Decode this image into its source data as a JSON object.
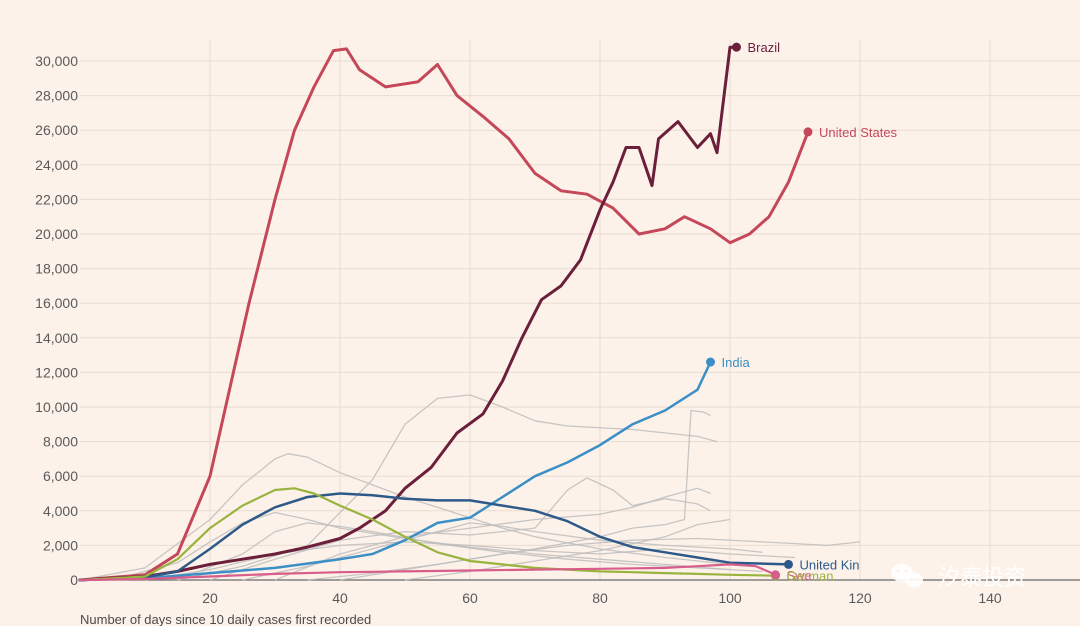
{
  "chart_data": {
    "type": "line",
    "title": "",
    "xlabel": "Number of days since 10 daily cases first recorded",
    "ylabel": "",
    "xlim": [
      0,
      160
    ],
    "ylim": [
      0,
      30000
    ],
    "x_ticks": [
      20,
      40,
      60,
      80,
      100,
      120,
      140
    ],
    "y_ticks": [
      0,
      2000,
      4000,
      6000,
      8000,
      10000,
      12000,
      14000,
      16000,
      18000,
      20000,
      22000,
      24000,
      26000,
      28000,
      30000
    ],
    "y_tick_labels": [
      "0",
      "2,000",
      "4,000",
      "6,000",
      "8,000",
      "10,000",
      "12,000",
      "14,000",
      "16,000",
      "18,000",
      "20,000",
      "22,000",
      "24,000",
      "26,000",
      "28,000",
      "30,000"
    ],
    "grid": true,
    "series": [
      {
        "name": "United States",
        "color": "#c4485a",
        "highlight": true,
        "points": [
          [
            0,
            0
          ],
          [
            10,
            300
          ],
          [
            15,
            1500
          ],
          [
            20,
            6000
          ],
          [
            23,
            11000
          ],
          [
            26,
            16000
          ],
          [
            30,
            22000
          ],
          [
            33,
            26000
          ],
          [
            36,
            28500
          ],
          [
            39,
            30600
          ],
          [
            41,
            30700
          ],
          [
            43,
            29500
          ],
          [
            47,
            28500
          ],
          [
            52,
            28800
          ],
          [
            55,
            29800
          ],
          [
            58,
            28000
          ],
          [
            62,
            26800
          ],
          [
            66,
            25500
          ],
          [
            70,
            23500
          ],
          [
            74,
            22500
          ],
          [
            78,
            22300
          ],
          [
            82,
            21500
          ],
          [
            86,
            20000
          ],
          [
            90,
            20300
          ],
          [
            93,
            21000
          ],
          [
            97,
            20300
          ],
          [
            100,
            19500
          ],
          [
            103,
            20000
          ],
          [
            106,
            21000
          ],
          [
            109,
            23000
          ],
          [
            112,
            25900
          ]
        ]
      },
      {
        "name": "Brazil",
        "color": "#6b1f3a",
        "highlight": true,
        "points": [
          [
            0,
            0
          ],
          [
            10,
            200
          ],
          [
            15,
            500
          ],
          [
            20,
            900
          ],
          [
            25,
            1200
          ],
          [
            30,
            1500
          ],
          [
            35,
            1900
          ],
          [
            40,
            2400
          ],
          [
            43,
            3000
          ],
          [
            47,
            4000
          ],
          [
            50,
            5300
          ],
          [
            54,
            6500
          ],
          [
            58,
            8500
          ],
          [
            62,
            9600
          ],
          [
            65,
            11500
          ],
          [
            68,
            14000
          ],
          [
            71,
            16200
          ],
          [
            74,
            17000
          ],
          [
            77,
            18500
          ],
          [
            80,
            21400
          ],
          [
            82,
            23000
          ],
          [
            84,
            25000
          ],
          [
            86,
            25000
          ],
          [
            88,
            22800
          ],
          [
            89,
            25500
          ],
          [
            92,
            26500
          ],
          [
            95,
            25000
          ],
          [
            97,
            25800
          ],
          [
            98,
            24700
          ],
          [
            100,
            30800
          ],
          [
            101,
            30800
          ]
        ]
      },
      {
        "name": "India",
        "color": "#3c8fc6",
        "highlight": true,
        "points": [
          [
            0,
            0
          ],
          [
            10,
            100
          ],
          [
            20,
            400
          ],
          [
            30,
            700
          ],
          [
            40,
            1200
          ],
          [
            45,
            1500
          ],
          [
            50,
            2300
          ],
          [
            55,
            3300
          ],
          [
            60,
            3600
          ],
          [
            65,
            4800
          ],
          [
            70,
            6000
          ],
          [
            75,
            6800
          ],
          [
            80,
            7800
          ],
          [
            85,
            9000
          ],
          [
            90,
            9800
          ],
          [
            95,
            11000
          ],
          [
            97,
            12600
          ]
        ]
      },
      {
        "name": "United Kingdom",
        "color": "#2e5a8a",
        "highlight": true,
        "points": [
          [
            0,
            0
          ],
          [
            10,
            150
          ],
          [
            15,
            500
          ],
          [
            20,
            1800
          ],
          [
            25,
            3200
          ],
          [
            30,
            4200
          ],
          [
            35,
            4800
          ],
          [
            40,
            5000
          ],
          [
            45,
            4900
          ],
          [
            50,
            4700
          ],
          [
            55,
            4600
          ],
          [
            60,
            4600
          ],
          [
            65,
            4300
          ],
          [
            70,
            4000
          ],
          [
            75,
            3400
          ],
          [
            80,
            2500
          ],
          [
            85,
            1900
          ],
          [
            90,
            1600
          ],
          [
            95,
            1300
          ],
          [
            100,
            1000
          ],
          [
            109,
            900
          ]
        ]
      },
      {
        "name": "Germany",
        "color": "#9ab33f",
        "highlight": true,
        "points": [
          [
            0,
            0
          ],
          [
            10,
            200
          ],
          [
            15,
            1200
          ],
          [
            20,
            3000
          ],
          [
            25,
            4300
          ],
          [
            30,
            5200
          ],
          [
            33,
            5300
          ],
          [
            36,
            5000
          ],
          [
            40,
            4300
          ],
          [
            45,
            3500
          ],
          [
            50,
            2500
          ],
          [
            55,
            1600
          ],
          [
            60,
            1100
          ],
          [
            65,
            900
          ],
          [
            70,
            700
          ],
          [
            75,
            600
          ],
          [
            80,
            500
          ],
          [
            85,
            450
          ],
          [
            90,
            400
          ],
          [
            95,
            350
          ],
          [
            100,
            300
          ],
          [
            107,
            250
          ]
        ]
      },
      {
        "name": "Sweden",
        "color": "#d95d8b",
        "highlight": true,
        "points": [
          [
            0,
            0
          ],
          [
            10,
            60
          ],
          [
            20,
            200
          ],
          [
            30,
            350
          ],
          [
            40,
            450
          ],
          [
            50,
            500
          ],
          [
            60,
            550
          ],
          [
            70,
            600
          ],
          [
            80,
            650
          ],
          [
            90,
            700
          ],
          [
            95,
            800
          ],
          [
            100,
            900
          ],
          [
            104,
            800
          ],
          [
            107,
            300
          ]
        ]
      }
    ],
    "background_series": [
      {
        "name": "",
        "points": [
          [
            0,
            0
          ],
          [
            10,
            700
          ],
          [
            20,
            3500
          ],
          [
            25,
            5500
          ],
          [
            30,
            7000
          ],
          [
            32,
            7300
          ],
          [
            35,
            7100
          ],
          [
            40,
            6200
          ],
          [
            45,
            5500
          ],
          [
            50,
            4800
          ],
          [
            55,
            4200
          ],
          [
            60,
            3600
          ],
          [
            65,
            3000
          ],
          [
            70,
            2500
          ],
          [
            80,
            1800
          ],
          [
            90,
            1300
          ],
          [
            100,
            900
          ]
        ]
      },
      {
        "name": "",
        "points": [
          [
            15,
            0
          ],
          [
            25,
            800
          ],
          [
            35,
            2000
          ],
          [
            45,
            5800
          ],
          [
            50,
            9000
          ],
          [
            55,
            10500
          ],
          [
            60,
            10700
          ],
          [
            65,
            10000
          ],
          [
            70,
            9200
          ],
          [
            75,
            8900
          ],
          [
            85,
            8700
          ],
          [
            95,
            8300
          ],
          [
            98,
            8000
          ]
        ]
      },
      {
        "name": "",
        "points": [
          [
            30,
            0
          ],
          [
            40,
            1500
          ],
          [
            50,
            2500
          ],
          [
            60,
            3000
          ],
          [
            70,
            3500
          ],
          [
            80,
            3800
          ],
          [
            85,
            4200
          ],
          [
            90,
            4800
          ],
          [
            95,
            5300
          ],
          [
            97,
            5000
          ]
        ]
      },
      {
        "name": "",
        "points": [
          [
            20,
            0
          ],
          [
            30,
            1200
          ],
          [
            40,
            2300
          ],
          [
            50,
            2800
          ],
          [
            60,
            2600
          ],
          [
            70,
            3000
          ],
          [
            75,
            5200
          ],
          [
            78,
            5900
          ],
          [
            82,
            5200
          ],
          [
            85,
            4300
          ],
          [
            90,
            4700
          ],
          [
            95,
            4400
          ],
          [
            97,
            4000
          ]
        ]
      },
      {
        "name": "",
        "points": [
          [
            40,
            0
          ],
          [
            50,
            600
          ],
          [
            60,
            1200
          ],
          [
            70,
            1800
          ],
          [
            80,
            2500
          ],
          [
            85,
            3000
          ],
          [
            90,
            3200
          ],
          [
            93,
            3500
          ],
          [
            94,
            9800
          ],
          [
            96,
            9700
          ],
          [
            97,
            9500
          ]
        ]
      },
      {
        "name": "",
        "points": [
          [
            5,
            0
          ],
          [
            15,
            1000
          ],
          [
            20,
            2200
          ],
          [
            25,
            3300
          ],
          [
            30,
            3900
          ],
          [
            35,
            3500
          ],
          [
            40,
            3000
          ],
          [
            50,
            2400
          ],
          [
            60,
            1900
          ],
          [
            70,
            1500
          ],
          [
            80,
            1200
          ],
          [
            90,
            900
          ],
          [
            100,
            600
          ]
        ]
      },
      {
        "name": "",
        "points": [
          [
            15,
            0
          ],
          [
            25,
            1500
          ],
          [
            30,
            2800
          ],
          [
            35,
            3300
          ],
          [
            40,
            3100
          ],
          [
            45,
            2800
          ],
          [
            55,
            2100
          ],
          [
            65,
            1600
          ],
          [
            75,
            1200
          ],
          [
            85,
            900
          ],
          [
            95,
            700
          ],
          [
            105,
            500
          ]
        ]
      },
      {
        "name": "",
        "points": [
          [
            35,
            0
          ],
          [
            45,
            400
          ],
          [
            55,
            900
          ],
          [
            65,
            1500
          ],
          [
            75,
            2000
          ],
          [
            85,
            2300
          ],
          [
            95,
            2400
          ],
          [
            105,
            2200
          ],
          [
            115,
            2000
          ],
          [
            120,
            2200
          ]
        ]
      },
      {
        "name": "",
        "points": [
          [
            50,
            0
          ],
          [
            60,
            500
          ],
          [
            70,
            1100
          ],
          [
            80,
            1700
          ],
          [
            85,
            2100
          ],
          [
            90,
            2500
          ],
          [
            95,
            3200
          ],
          [
            100,
            3500
          ]
        ]
      },
      {
        "name": "",
        "points": [
          [
            10,
            0
          ],
          [
            20,
            600
          ],
          [
            30,
            1500
          ],
          [
            40,
            2000
          ],
          [
            50,
            2200
          ],
          [
            60,
            2000
          ],
          [
            70,
            1700
          ],
          [
            80,
            1500
          ],
          [
            90,
            1800
          ],
          [
            100,
            1500
          ],
          [
            110,
            1300
          ]
        ]
      },
      {
        "name": "",
        "points": [
          [
            25,
            0
          ],
          [
            35,
            800
          ],
          [
            45,
            1800
          ],
          [
            55,
            2800
          ],
          [
            60,
            3300
          ],
          [
            65,
            3100
          ],
          [
            70,
            2800
          ],
          [
            80,
            2300
          ],
          [
            90,
            2000
          ],
          [
            100,
            1800
          ],
          [
            105,
            1600
          ]
        ]
      }
    ],
    "annotations": [
      {
        "series": "Brazil",
        "label": "Brazil"
      },
      {
        "series": "United States",
        "label": "United States"
      },
      {
        "series": "India",
        "label": "India"
      },
      {
        "series": "United Kingdom",
        "label": "United Kin"
      },
      {
        "series": "Sweden",
        "label": "Swe"
      },
      {
        "series": "Germany",
        "label": "German"
      }
    ]
  },
  "watermark": {
    "text": "汐泰投资",
    "icon": "wechat-icon"
  },
  "colors": {
    "background": "#fdf2e9",
    "grid": "#e9dcd1",
    "axis": "#6a6a6a",
    "background_series": "#bdbdbd"
  }
}
